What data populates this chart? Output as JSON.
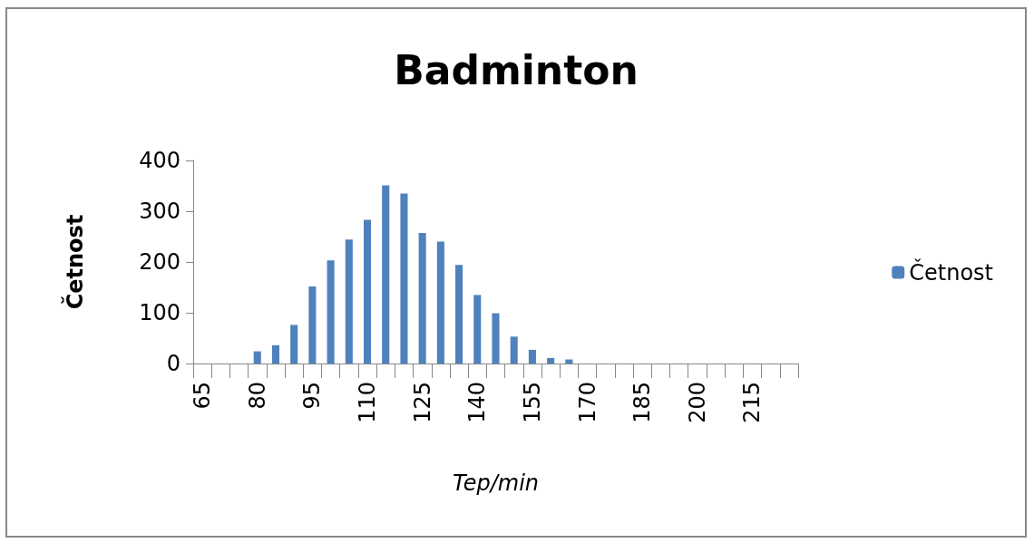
{
  "chart_data": {
    "type": "bar",
    "title": "Badminton",
    "xlabel": "Tep/min",
    "ylabel": "Četnost",
    "categories": [
      "65",
      null,
      null,
      "80",
      null,
      null,
      "95",
      null,
      null,
      "110",
      null,
      null,
      "125",
      null,
      null,
      "140",
      null,
      null,
      "155",
      null,
      null,
      "170",
      null,
      null,
      "185",
      null,
      null,
      "200",
      null,
      null,
      "215",
      null,
      null
    ],
    "series": [
      {
        "name": "Četnost",
        "color": "#4f81bd",
        "values": [
          0,
          0,
          0,
          24,
          36,
          76,
          152,
          203,
          244,
          283,
          351,
          335,
          257,
          240,
          194,
          135,
          99,
          53,
          27,
          11,
          8,
          0,
          0,
          0,
          0,
          0,
          0,
          0,
          0,
          0,
          0,
          0,
          0
        ]
      }
    ],
    "ylim": [
      0,
      400
    ],
    "yticks": [
      0,
      100,
      200,
      300,
      400
    ],
    "grid": false,
    "legend": "right"
  }
}
